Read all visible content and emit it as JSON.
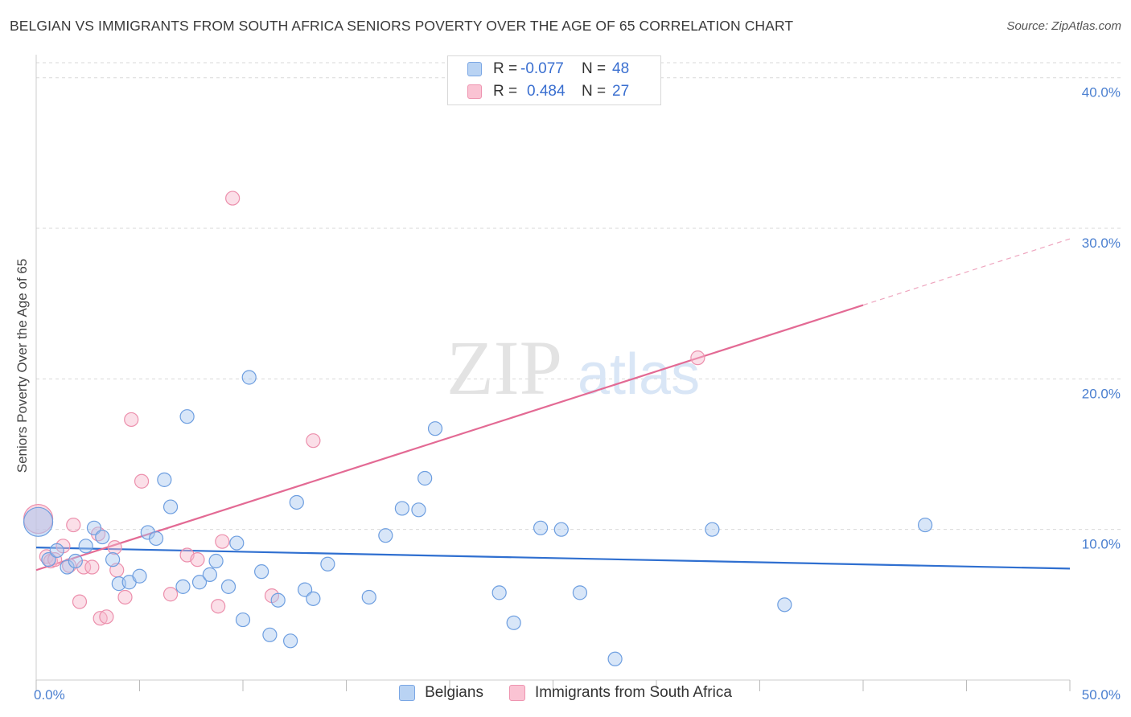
{
  "title": "BELGIAN VS IMMIGRANTS FROM SOUTH AFRICA SENIORS POVERTY OVER THE AGE OF 65 CORRELATION CHART",
  "source": "Source: ZipAtlas.com",
  "watermark": {
    "zip": "ZIP",
    "atlas": "atlas"
  },
  "legend": {
    "rows": [
      {
        "r_label": "R =",
        "r_value": "-0.077",
        "n_label": "N =",
        "n_value": "48"
      },
      {
        "r_label": "R =",
        "r_value": "0.484",
        "n_label": "N =",
        "n_value": "27"
      }
    ]
  },
  "bottom_legend": [
    "Belgians",
    "Immigrants from South Africa"
  ],
  "colors": {
    "blue_fill": "#a9c8f0",
    "blue_stroke": "#6d9ee0",
    "blue_line": "#2f6fd0",
    "pink_fill": "#f7b8cb",
    "pink_stroke": "#ec8fac",
    "pink_line": "#e36a94",
    "grid": "#d9d9d9",
    "tick_text": "#4a7fd0"
  },
  "chart_data": {
    "type": "scatter",
    "title": "BELGIAN VS IMMIGRANTS FROM SOUTH AFRICA SENIORS POVERTY OVER THE AGE OF 65 CORRELATION CHART",
    "xlabel": "",
    "ylabel": "Seniors Poverty Over the Age of 65",
    "xlim": [
      0,
      50
    ],
    "ylim": [
      0,
      41
    ],
    "x_tick_labels": [
      "0.0%",
      "50.0%"
    ],
    "y_ticks": [
      10,
      20,
      30,
      40
    ],
    "y_tick_labels": [
      "10.0%",
      "20.0%",
      "30.0%",
      "40.0%"
    ],
    "grid": true,
    "series": [
      {
        "name": "Belgians",
        "color": "#6d9ee0",
        "r": -0.077,
        "n": 48,
        "trend": {
          "x": [
            0,
            50
          ],
          "y": [
            8.8,
            7.4
          ],
          "dashed_from": null
        },
        "points": [
          {
            "x": 0.1,
            "y": 10.5,
            "big": true
          },
          {
            "x": 0.6,
            "y": 8.0
          },
          {
            "x": 1.0,
            "y": 8.6
          },
          {
            "x": 1.5,
            "y": 7.5
          },
          {
            "x": 1.9,
            "y": 7.9
          },
          {
            "x": 2.4,
            "y": 8.9
          },
          {
            "x": 2.8,
            "y": 10.1
          },
          {
            "x": 3.2,
            "y": 9.5
          },
          {
            "x": 3.7,
            "y": 8.0
          },
          {
            "x": 4.0,
            "y": 6.4
          },
          {
            "x": 4.5,
            "y": 6.5
          },
          {
            "x": 5.0,
            "y": 6.9
          },
          {
            "x": 5.4,
            "y": 9.8
          },
          {
            "x": 5.8,
            "y": 9.4
          },
          {
            "x": 6.2,
            "y": 13.3
          },
          {
            "x": 6.5,
            "y": 11.5
          },
          {
            "x": 7.1,
            "y": 6.2
          },
          {
            "x": 7.3,
            "y": 17.5
          },
          {
            "x": 7.9,
            "y": 6.5
          },
          {
            "x": 8.4,
            "y": 7.0
          },
          {
            "x": 8.7,
            "y": 7.9
          },
          {
            "x": 9.3,
            "y": 6.2
          },
          {
            "x": 9.7,
            "y": 9.1
          },
          {
            "x": 10.0,
            "y": 4.0
          },
          {
            "x": 10.3,
            "y": 20.1
          },
          {
            "x": 10.9,
            "y": 7.2
          },
          {
            "x": 11.3,
            "y": 3.0
          },
          {
            "x": 11.7,
            "y": 5.3
          },
          {
            "x": 12.3,
            "y": 2.6
          },
          {
            "x": 12.6,
            "y": 11.8
          },
          {
            "x": 13.0,
            "y": 6.0
          },
          {
            "x": 13.4,
            "y": 5.4
          },
          {
            "x": 14.1,
            "y": 7.7
          },
          {
            "x": 16.1,
            "y": 5.5
          },
          {
            "x": 16.9,
            "y": 9.6
          },
          {
            "x": 17.7,
            "y": 11.4
          },
          {
            "x": 18.5,
            "y": 11.3
          },
          {
            "x": 19.3,
            "y": 16.7
          },
          {
            "x": 18.8,
            "y": 13.4
          },
          {
            "x": 22.4,
            "y": 5.8
          },
          {
            "x": 23.1,
            "y": 3.8
          },
          {
            "x": 24.4,
            "y": 10.1
          },
          {
            "x": 25.4,
            "y": 10.0
          },
          {
            "x": 26.3,
            "y": 5.8
          },
          {
            "x": 28.0,
            "y": 1.4
          },
          {
            "x": 32.7,
            "y": 10.0
          },
          {
            "x": 36.2,
            "y": 5.0
          },
          {
            "x": 43.0,
            "y": 10.3
          }
        ]
      },
      {
        "name": "Immigrants from South Africa",
        "color": "#ec8fac",
        "r": 0.484,
        "n": 27,
        "trend": {
          "x": [
            0,
            50
          ],
          "y": [
            7.3,
            29.3
          ],
          "dashed_from": 40
        },
        "points": [
          {
            "x": 0.1,
            "y": 10.7,
            "big": true
          },
          {
            "x": 0.5,
            "y": 8.2
          },
          {
            "x": 0.7,
            "y": 7.9
          },
          {
            "x": 0.9,
            "y": 8.0
          },
          {
            "x": 1.3,
            "y": 8.9
          },
          {
            "x": 1.6,
            "y": 7.6
          },
          {
            "x": 1.8,
            "y": 10.3
          },
          {
            "x": 2.1,
            "y": 5.2
          },
          {
            "x": 2.3,
            "y": 7.5
          },
          {
            "x": 2.7,
            "y": 7.5
          },
          {
            "x": 3.0,
            "y": 9.7
          },
          {
            "x": 3.1,
            "y": 4.1
          },
          {
            "x": 3.4,
            "y": 4.2
          },
          {
            "x": 3.8,
            "y": 8.8
          },
          {
            "x": 3.9,
            "y": 7.3
          },
          {
            "x": 4.3,
            "y": 5.5
          },
          {
            "x": 4.6,
            "y": 17.3
          },
          {
            "x": 5.1,
            "y": 13.2
          },
          {
            "x": 6.5,
            "y": 5.7
          },
          {
            "x": 7.3,
            "y": 8.3
          },
          {
            "x": 7.8,
            "y": 8.0
          },
          {
            "x": 8.8,
            "y": 4.9
          },
          {
            "x": 9.0,
            "y": 9.2
          },
          {
            "x": 9.5,
            "y": 32.0
          },
          {
            "x": 11.4,
            "y": 5.6
          },
          {
            "x": 13.4,
            "y": 15.9
          },
          {
            "x": 32.0,
            "y": 21.4
          }
        ]
      }
    ]
  }
}
